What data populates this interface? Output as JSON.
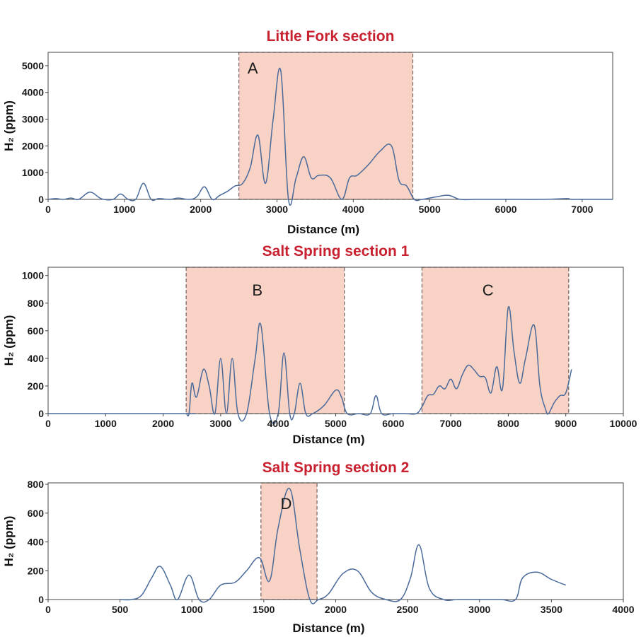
{
  "chart_data": [
    {
      "type": "line",
      "title": "Little Fork section",
      "xlabel": "Distance (m)",
      "ylabel": "H₂ (ppm)",
      "xlim": [
        0,
        7400
      ],
      "ylim": [
        0,
        5500
      ],
      "xticks": [
        0,
        1000,
        2000,
        3000,
        4000,
        5000,
        6000,
        7000
      ],
      "yticks": [
        0,
        1000,
        2000,
        3000,
        4000,
        5000
      ],
      "line_color": "#4a6a9a",
      "zone_color": "#f9d2c6",
      "series": [
        {
          "x": [
            0,
            100,
            200,
            300,
            400,
            550,
            700,
            850,
            950,
            1050,
            1150,
            1250,
            1350,
            1450,
            1600,
            1700,
            1850,
            1950,
            2050,
            2150,
            2250,
            2350,
            2450,
            2550,
            2650,
            2750,
            2850,
            2950,
            3050,
            3150,
            3250,
            3350,
            3450,
            3550,
            3700,
            3850,
            3950,
            4050,
            4200,
            4350,
            4500,
            4600,
            4700,
            4800,
            4900,
            5000,
            5100,
            5250,
            5400,
            5600,
            6000,
            6500,
            6800,
            6850,
            7000,
            7400
          ],
          "y": [
            0,
            30,
            0,
            50,
            0,
            270,
            20,
            0,
            200,
            0,
            10,
            600,
            0,
            30,
            0,
            50,
            0,
            100,
            470,
            0,
            150,
            300,
            500,
            600,
            1200,
            2400,
            600,
            3000,
            4800,
            0,
            800,
            1600,
            800,
            900,
            800,
            0,
            800,
            900,
            1300,
            1800,
            2000,
            700,
            500,
            0,
            0,
            50,
            100,
            150,
            0,
            0,
            0,
            0,
            30,
            0,
            0,
            0
          ]
        }
      ],
      "zones": [
        {
          "label": "A",
          "x0": 2500,
          "x1": 4780
        }
      ]
    },
    {
      "type": "line",
      "title": "Salt Spring section 1",
      "xlabel": "Distance (m)",
      "ylabel": "H₂ (ppm)",
      "xlim": [
        0,
        10000
      ],
      "ylim": [
        0,
        1060
      ],
      "xticks": [
        0,
        1000,
        2000,
        3000,
        4000,
        5000,
        6000,
        7000,
        8000,
        9000,
        10000
      ],
      "yticks": [
        0,
        200,
        400,
        600,
        800,
        1000
      ],
      "line_color": "#4a6a9a",
      "zone_color": "#f9d2c6",
      "series": [
        {
          "x": [
            0,
            2350,
            2400,
            2450,
            2500,
            2580,
            2700,
            2800,
            2900,
            3000,
            3100,
            3200,
            3300,
            3450,
            3600,
            3700,
            3850,
            4000,
            4100,
            4200,
            4280,
            4380,
            4480,
            4600,
            4800,
            5000,
            5100,
            5200,
            5400,
            5600,
            5700,
            5800,
            6000,
            6200,
            6400,
            6500,
            6600,
            6700,
            6800,
            6900,
            7000,
            7100,
            7200,
            7300,
            7400,
            7500,
            7600,
            7700,
            7800,
            7900,
            8000,
            8100,
            8200,
            8300,
            8450,
            8550,
            8650,
            8700,
            8800,
            8900,
            9000,
            9100
          ],
          "y": [
            0,
            0,
            0,
            0,
            220,
            120,
            320,
            200,
            0,
            400,
            0,
            400,
            0,
            0,
            400,
            640,
            0,
            0,
            440,
            0,
            0,
            220,
            0,
            0,
            60,
            170,
            120,
            0,
            0,
            0,
            130,
            0,
            0,
            0,
            0,
            50,
            130,
            140,
            200,
            180,
            250,
            180,
            280,
            350,
            320,
            270,
            260,
            150,
            340,
            180,
            770,
            450,
            220,
            400,
            640,
            200,
            30,
            0,
            80,
            130,
            150,
            320
          ]
        }
      ],
      "zones": [
        {
          "label": "B",
          "x0": 2400,
          "x1": 5150
        },
        {
          "label": "C",
          "x0": 6500,
          "x1": 9050
        }
      ]
    },
    {
      "type": "line",
      "title": "Salt Spring section 2",
      "xlabel": "Distance (m)",
      "ylabel": "H₂ (ppm)",
      "xlim": [
        0,
        4000
      ],
      "ylim": [
        0,
        810
      ],
      "xticks": [
        0,
        500,
        1000,
        1500,
        2000,
        2500,
        3000,
        3500,
        4000
      ],
      "yticks": [
        0,
        200,
        400,
        600,
        800
      ],
      "line_color": "#4a6a9a",
      "zone_color": "#f9d2c6",
      "series": [
        {
          "x": [
            500,
            580,
            650,
            720,
            780,
            850,
            900,
            980,
            1050,
            1120,
            1200,
            1300,
            1380,
            1470,
            1540,
            1600,
            1680,
            1750,
            1820,
            1880,
            1950,
            2050,
            2150,
            2250,
            2350,
            2450,
            2520,
            2580,
            2650,
            2750,
            2850,
            3000,
            3150,
            3250,
            3300,
            3400,
            3500,
            3600
          ],
          "y": [
            0,
            0,
            30,
            150,
            230,
            100,
            0,
            170,
            0,
            0,
            100,
            120,
            200,
            290,
            130,
            500,
            770,
            350,
            0,
            0,
            40,
            180,
            200,
            50,
            0,
            0,
            150,
            380,
            80,
            0,
            0,
            0,
            0,
            0,
            150,
            190,
            140,
            100
          ]
        }
      ],
      "zones": [
        {
          "label": "D",
          "x0": 1480,
          "x1": 1870
        }
      ]
    }
  ]
}
